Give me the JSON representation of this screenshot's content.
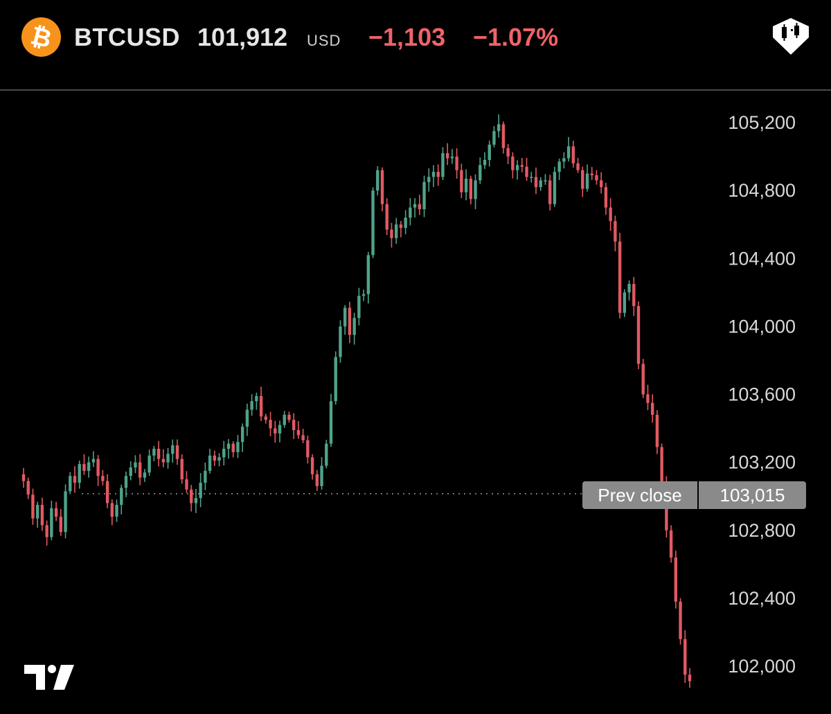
{
  "header": {
    "logo_glyph": "₿",
    "logo_icon": "bitcoin-icon",
    "logo_color": "#F7931A",
    "symbol": "BTCUSD",
    "price": "101,912",
    "currency": "USD",
    "change_abs": "−1,103",
    "change_pct": "−1.07%",
    "change_color": "#f0626a",
    "chart_type_icon": "candlestick-chart-icon"
  },
  "branding": {
    "logo_icon": "tradingview-logo-icon"
  },
  "chart_data": {
    "type": "candlestick",
    "title": "",
    "xlabel": "",
    "ylabel": "",
    "ylim": [
      101860,
      105300
    ],
    "y_ticks": [
      "105,200",
      "104,800",
      "104,400",
      "104,000",
      "103,600",
      "103,200",
      "102,800",
      "102,400",
      "102,000"
    ],
    "y_tick_values": [
      105200,
      104800,
      104400,
      104000,
      103600,
      103200,
      102800,
      102400,
      102000
    ],
    "up_color": "#4fa38b",
    "down_color": "#e05a62",
    "grid": false,
    "prev_close": {
      "label": "Prev close",
      "value": 103015,
      "value_label": "103,015"
    },
    "closes": [
      103090,
      103010,
      102870,
      102950,
      102830,
      102760,
      102930,
      102880,
      102790,
      103030,
      103120,
      103080,
      103190,
      103150,
      103200,
      103220,
      103120,
      103090,
      102960,
      102880,
      102950,
      103050,
      103120,
      103170,
      103200,
      103110,
      103140,
      103240,
      103280,
      103220,
      103200,
      103250,
      103300,
      103220,
      103100,
      103040,
      102960,
      102990,
      103080,
      103150,
      103240,
      103210,
      103230,
      103280,
      103310,
      103260,
      103320,
      103410,
      103510,
      103560,
      103590,
      103470,
      103450,
      103400,
      103370,
      103420,
      103480,
      103450,
      103390,
      103360,
      103330,
      103230,
      103130,
      103060,
      103180,
      103310,
      103560,
      103820,
      104000,
      104110,
      103950,
      104050,
      104180,
      104190,
      104420,
      104800,
      104920,
      104720,
      104570,
      104520,
      104600,
      104580,
      104640,
      104700,
      104720,
      104690,
      104850,
      104880,
      104910,
      104880,
      105020,
      104990,
      105000,
      104920,
      104790,
      104870,
      104750,
      104860,
      104950,
      104980,
      105070,
      105150,
      105190,
      105050,
      105000,
      104920,
      104950,
      104940,
      104880,
      104880,
      104820,
      104860,
      104860,
      104720,
      104910,
      104970,
      104990,
      105060,
      104960,
      104920,
      104810,
      104900,
      104890,
      104860,
      104820,
      104700,
      104620,
      104500,
      104080,
      104200,
      104250,
      104120,
      103780,
      103600,
      103550,
      103480,
      103290,
      103060,
      102800,
      102640,
      102380,
      102160,
      101950,
      101912
    ]
  }
}
